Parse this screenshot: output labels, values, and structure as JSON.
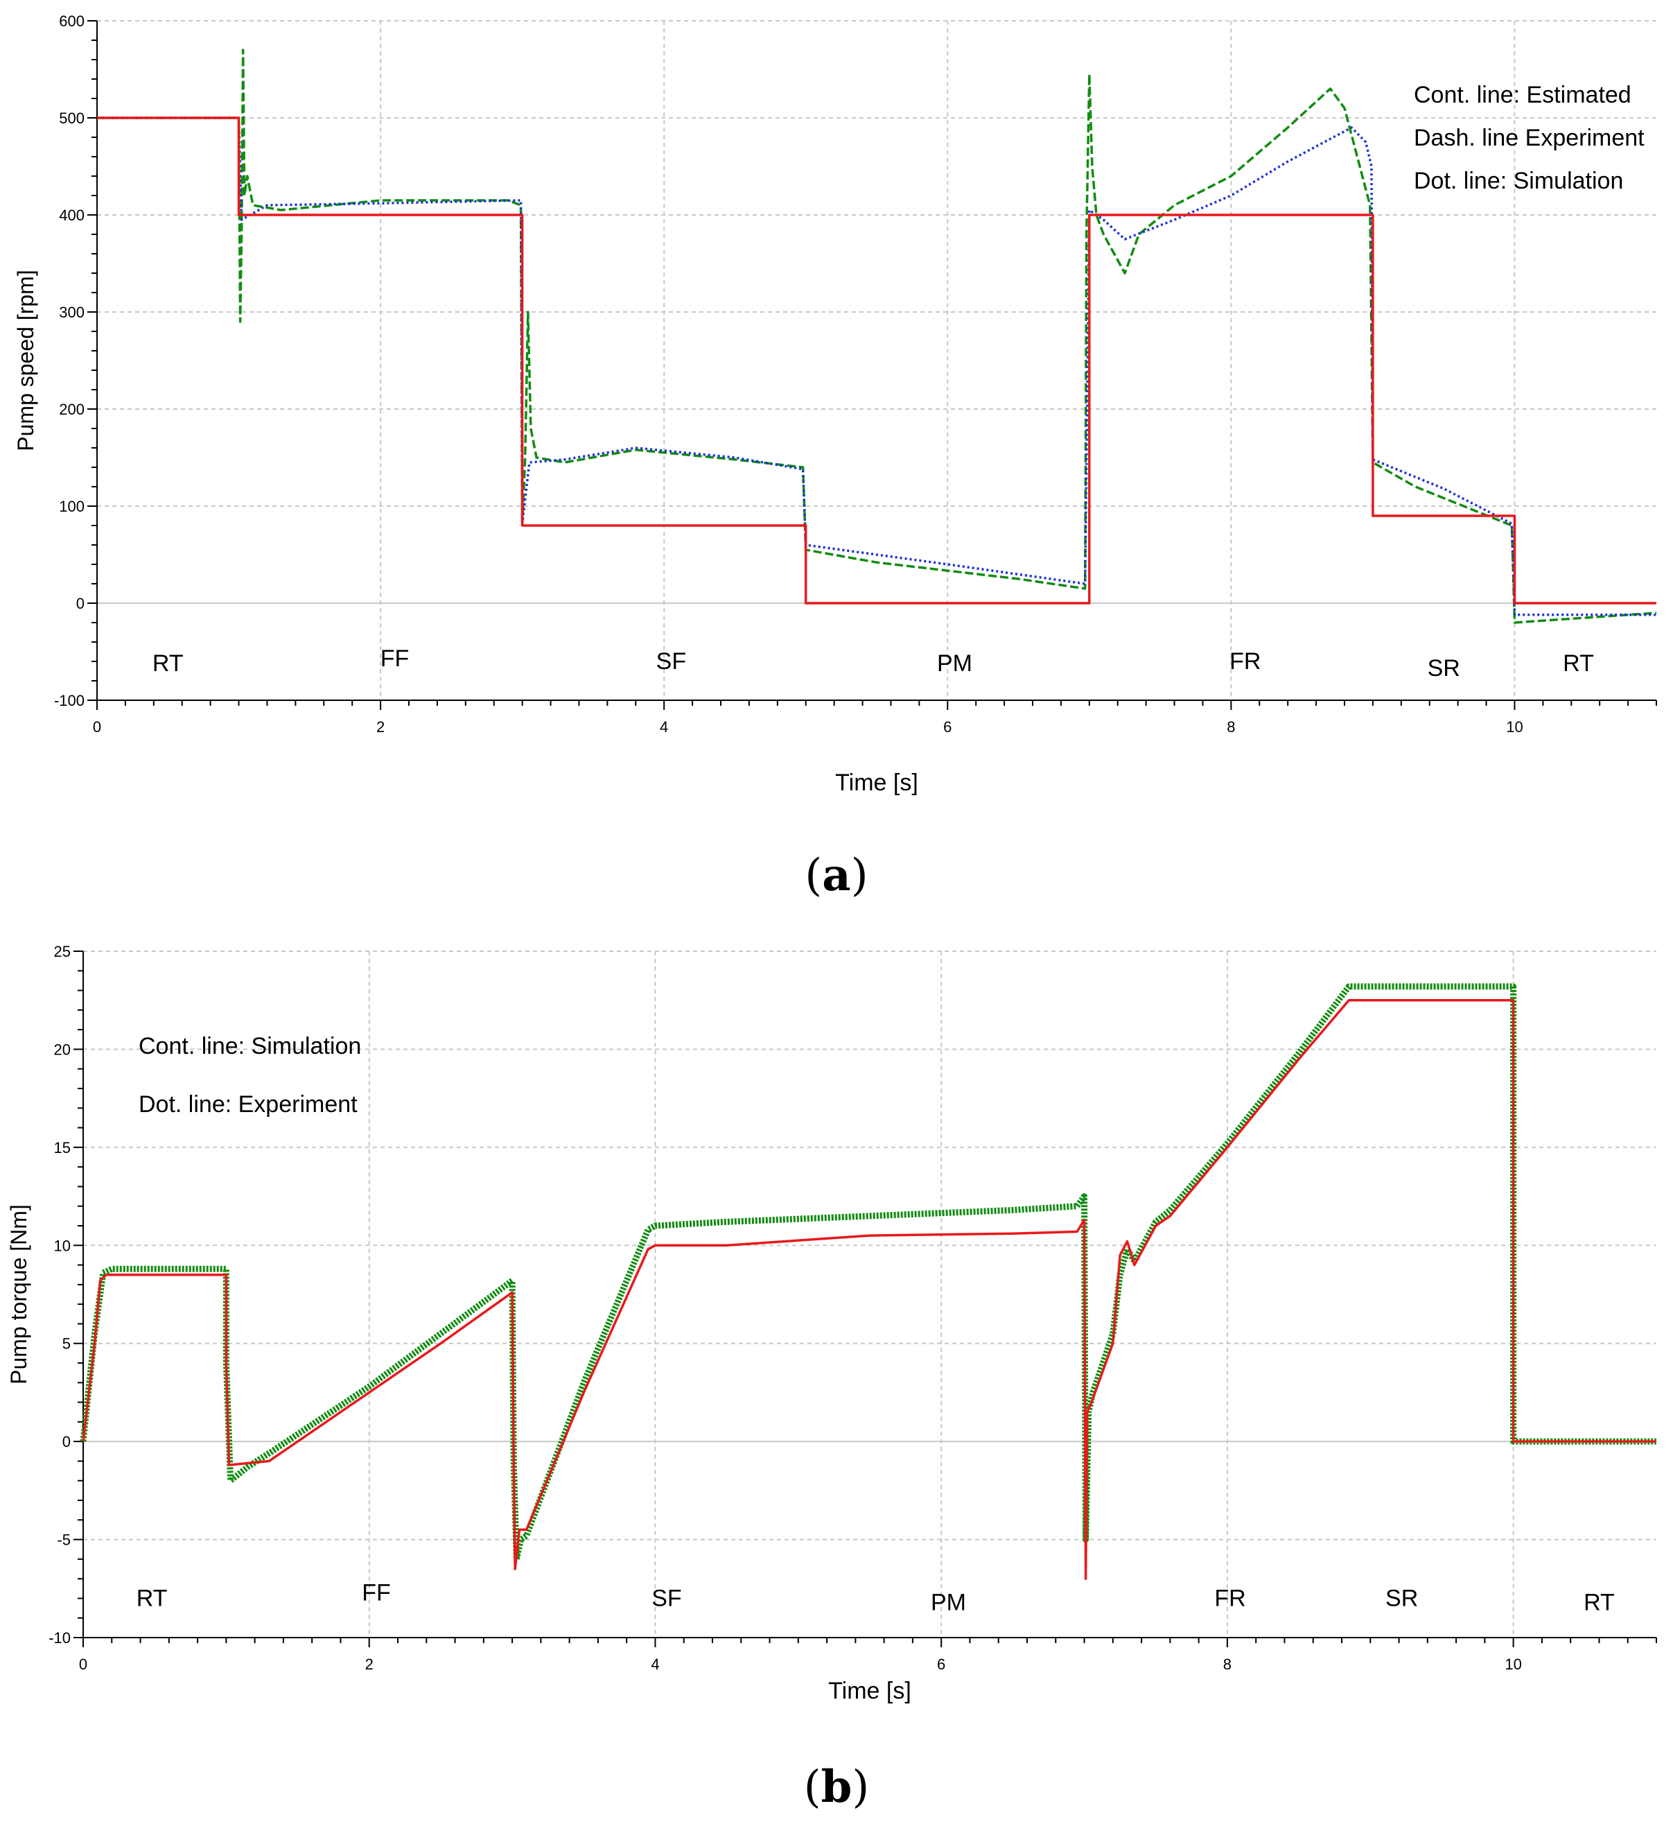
{
  "colors": {
    "estimated": "#e8191c",
    "experiment": "#128c12",
    "simulation": "#1a2fd6",
    "grid": "#c8c8c8",
    "axis": "#000000"
  },
  "captions": {
    "a": "a",
    "b": "b"
  },
  "chart_data": [
    {
      "type": "line",
      "title": "",
      "xlabel": "Time [s]",
      "ylabel": "Pump speed [rpm]",
      "xlim": [
        0,
        11
      ],
      "ylim": [
        -100,
        600
      ],
      "xticks": [
        "0",
        "2",
        "4",
        "6",
        "8",
        "10"
      ],
      "yticks": [
        "600",
        "500",
        "400",
        "300",
        "200",
        "100",
        "0",
        "-100"
      ],
      "legend": [
        "Cont. line: Estimated",
        "Dash. line Experiment",
        "Dot. line: Simulation"
      ],
      "legend_position": "top-right",
      "regions": [
        {
          "label": "RT",
          "x": 0.5,
          "y": -70
        },
        {
          "label": "FF",
          "x": 2.1,
          "y": -65
        },
        {
          "label": "SF",
          "x": 4.05,
          "y": -68
        },
        {
          "label": "PM",
          "x": 6.05,
          "y": -70
        },
        {
          "label": "FR",
          "x": 8.1,
          "y": -68
        },
        {
          "label": "SR",
          "x": 9.5,
          "y": -75
        },
        {
          "label": "RT",
          "x": 10.45,
          "y": -70
        }
      ],
      "series": [
        {
          "name": "Estimated",
          "style": "solid",
          "x": [
            0,
            1,
            1,
            3,
            3,
            5,
            5,
            7,
            7,
            9,
            9,
            10,
            10,
            11
          ],
          "y": [
            500,
            500,
            400,
            400,
            80,
            80,
            0,
            0,
            400,
            400,
            90,
            90,
            0,
            0
          ]
        },
        {
          "name": "Experiment",
          "style": "dashed",
          "x": [
            0,
            1,
            1.01,
            1.02,
            1.03,
            1.04,
            1.06,
            1.1,
            1.3,
            2,
            2.9,
            2.99,
            3.0,
            3.02,
            3.04,
            3.06,
            3.1,
            3.3,
            3.8,
            4.5,
            4.98,
            5.0,
            5.5,
            6.5,
            6.97,
            6.98,
            7.0,
            7.02,
            7.05,
            7.1,
            7.25,
            7.35,
            7.6,
            8.0,
            8.4,
            8.7,
            8.8,
            8.98,
            9.0,
            9.3,
            9.98,
            10.0,
            11
          ],
          "y": [
            500,
            500,
            290,
            380,
            570,
            420,
            440,
            410,
            405,
            415,
            415,
            410,
            80,
            150,
            300,
            180,
            150,
            145,
            158,
            148,
            140,
            55,
            42,
            25,
            15,
            380,
            545,
            450,
            400,
            380,
            340,
            380,
            410,
            440,
            490,
            530,
            510,
            410,
            145,
            120,
            80,
            -20,
            -10
          ]
        },
        {
          "name": "Simulation",
          "style": "dotted",
          "x": [
            0,
            1,
            1.02,
            1.2,
            2,
            2.99,
            3.0,
            3.05,
            3.3,
            3.8,
            4.5,
            4.98,
            5.0,
            6,
            6.97,
            7.0,
            7.1,
            7.25,
            7.6,
            8.0,
            8.4,
            8.85,
            8.95,
            8.99,
            9.0,
            9.5,
            9.98,
            10.0,
            11
          ],
          "y": [
            500,
            500,
            395,
            410,
            412,
            415,
            82,
            145,
            148,
            160,
            150,
            138,
            60,
            40,
            20,
            405,
            395,
            375,
            395,
            420,
            455,
            490,
            475,
            450,
            148,
            118,
            82,
            -12,
            -12
          ]
        }
      ]
    },
    {
      "type": "line",
      "title": "",
      "xlabel": "Time [s]",
      "ylabel": "Pump torque [Nm]",
      "xlim": [
        0,
        11
      ],
      "ylim": [
        -10,
        25
      ],
      "xticks": [
        "0",
        "2",
        "4",
        "6",
        "8",
        "10"
      ],
      "yticks": [
        "25",
        "20",
        "15",
        "10",
        "5",
        "0",
        "-5",
        "-10"
      ],
      "legend": [
        "Cont. line: Simulation",
        "Dot. line: Experiment"
      ],
      "legend_position": "top-left",
      "regions": [
        {
          "label": "RT",
          "x": 0.48,
          "y": -8.4
        },
        {
          "label": "FF",
          "x": 2.05,
          "y": -8.1
        },
        {
          "label": "SF",
          "x": 4.08,
          "y": -8.4
        },
        {
          "label": "PM",
          "x": 6.05,
          "y": -8.6
        },
        {
          "label": "FR",
          "x": 8.02,
          "y": -8.4
        },
        {
          "label": "SR",
          "x": 9.22,
          "y": -8.4
        },
        {
          "label": "RT",
          "x": 10.6,
          "y": -8.6
        }
      ],
      "series": [
        {
          "name": "Simulation",
          "style": "solid",
          "x": [
            0,
            0.08,
            0.12,
            0.16,
            1.0,
            1.0,
            1.02,
            1.3,
            2.0,
            2.5,
            3.0,
            3.01,
            3.02,
            3.05,
            3.1,
            3.5,
            3.95,
            4.0,
            4.5,
            5.5,
            6.5,
            6.95,
            7.0,
            7.01,
            7.02,
            7.05,
            7.2,
            7.25,
            7.3,
            7.35,
            7.5,
            7.6,
            8.0,
            8.5,
            8.85,
            10.0,
            10.0,
            11.0
          ],
          "y": [
            0,
            5,
            8.2,
            8.5,
            8.5,
            4,
            -1.2,
            -1.0,
            2.5,
            5,
            7.6,
            -1,
            -6.5,
            -4.5,
            -4.5,
            2.5,
            9.8,
            10.0,
            10.0,
            10.5,
            10.6,
            10.7,
            11.3,
            -7,
            1.5,
            2,
            5,
            9.5,
            10.2,
            9,
            11,
            11.5,
            15.0,
            19.5,
            22.5,
            22.5,
            0,
            0
          ]
        },
        {
          "name": "Experiment",
          "style": "dotted",
          "x": [
            0,
            0.08,
            0.14,
            0.2,
            1.0,
            1.0,
            1.03,
            1.15,
            1.3,
            2.0,
            2.5,
            3.0,
            3.01,
            3.03,
            3.06,
            3.1,
            3.5,
            3.95,
            4.0,
            4.5,
            5.5,
            6.5,
            6.95,
            7.0,
            7.01,
            7.03,
            7.06,
            7.2,
            7.25,
            7.3,
            7.35,
            7.5,
            7.6,
            8.0,
            8.5,
            8.85,
            10.0,
            10.0,
            11.0
          ],
          "y": [
            0,
            5.5,
            8.6,
            8.8,
            8.8,
            4,
            -2,
            -1.3,
            -0.6,
            2.8,
            5.5,
            8.2,
            -1,
            -6,
            -5,
            -4.8,
            3,
            10.8,
            11.0,
            11.2,
            11.5,
            11.8,
            12,
            12.5,
            -5,
            1.5,
            2.5,
            5.5,
            8.5,
            9.8,
            9.2,
            11.2,
            11.8,
            15.2,
            19.8,
            23.2,
            23.2,
            0,
            0
          ]
        }
      ]
    }
  ]
}
